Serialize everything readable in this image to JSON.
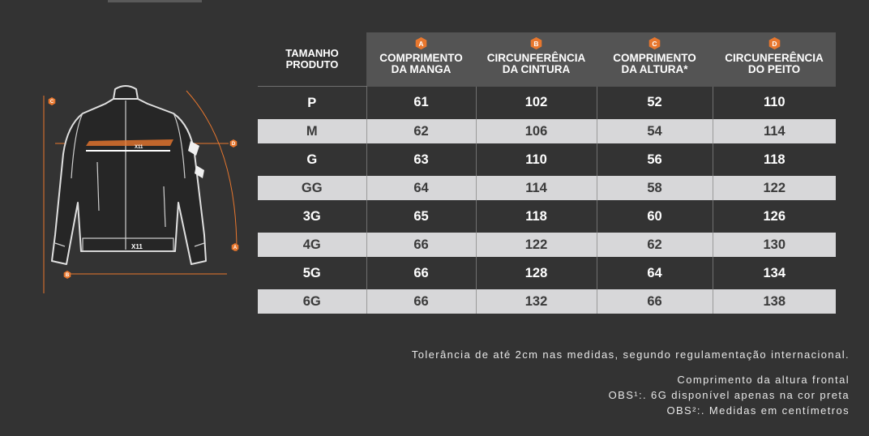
{
  "header": {
    "size_col": [
      "TAMANHO",
      "PRODUTO"
    ],
    "columns": [
      {
        "badge": "A",
        "line1": "COMPRIMENTO",
        "line2": "DA MANGA"
      },
      {
        "badge": "B",
        "line1": "CIRCUNFERÊNCIA",
        "line2": "DA CINTURA"
      },
      {
        "badge": "C",
        "line1": "COMPRIMENTO",
        "line2": "DA ALTURA*"
      },
      {
        "badge": "D",
        "line1": "CIRCUNFERÊNCIA",
        "line2": "DO PEITO"
      }
    ]
  },
  "rows": [
    {
      "size": "P",
      "a": "61",
      "b": "102",
      "c": "52",
      "d": "110"
    },
    {
      "size": "M",
      "a": "62",
      "b": "106",
      "c": "54",
      "d": "114"
    },
    {
      "size": "G",
      "a": "63",
      "b": "110",
      "c": "56",
      "d": "118"
    },
    {
      "size": "GG",
      "a": "64",
      "b": "114",
      "c": "58",
      "d": "122"
    },
    {
      "size": "3G",
      "a": "65",
      "b": "118",
      "c": "60",
      "d": "126"
    },
    {
      "size": "4G",
      "a": "66",
      "b": "122",
      "c": "62",
      "d": "130"
    },
    {
      "size": "5G",
      "a": "66",
      "b": "128",
      "c": "64",
      "d": "134"
    },
    {
      "size": "6G",
      "a": "66",
      "b": "132",
      "c": "66",
      "d": "138"
    }
  ],
  "diagram": {
    "labels": [
      "C",
      "D",
      "A",
      "B"
    ],
    "logo": "X11"
  },
  "notes": {
    "tolerance": "Tolerância de até 2cm nas medidas, segundo regulamentação internacional.",
    "line1": "Comprimento da altura frontal",
    "line2": "OBS¹:. 6G disponível apenas na cor preta",
    "line3": "OBS²:. Medidas em centímetros"
  },
  "colors": {
    "accent": "#e8772e",
    "background": "#333333",
    "header": "#545454",
    "stripe": "#d7d7d9"
  }
}
